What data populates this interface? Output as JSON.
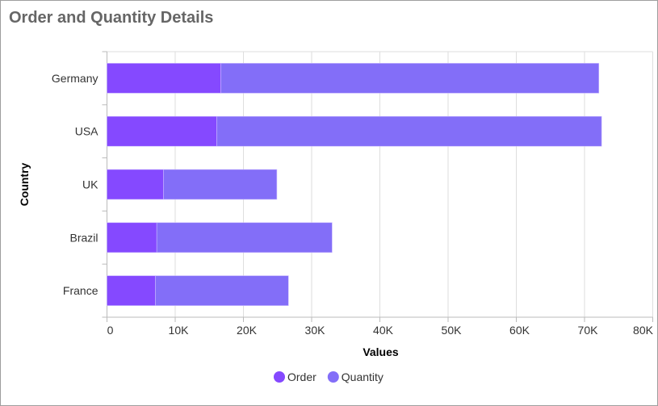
{
  "title": "Order and Quantity Details",
  "chart_data": {
    "type": "bar",
    "orientation": "horizontal",
    "stacked": true,
    "title": "Order and Quantity Details",
    "xlabel": "Values",
    "ylabel": "Country",
    "categories": [
      "Germany",
      "USA",
      "UK",
      "Brazil",
      "France"
    ],
    "series": [
      {
        "name": "Order",
        "color": "#8549FF",
        "values": [
          16700,
          16100,
          8300,
          7300,
          7100
        ]
      },
      {
        "name": "Quantity",
        "color": "#836EF8",
        "values": [
          55400,
          56400,
          16600,
          25700,
          19500
        ]
      }
    ],
    "xlim": [
      0,
      80000
    ],
    "xticks": [
      "0",
      "10K",
      "20K",
      "30K",
      "40K",
      "50K",
      "60K",
      "70K",
      "80K"
    ],
    "grid": true,
    "legend": "bottom"
  }
}
